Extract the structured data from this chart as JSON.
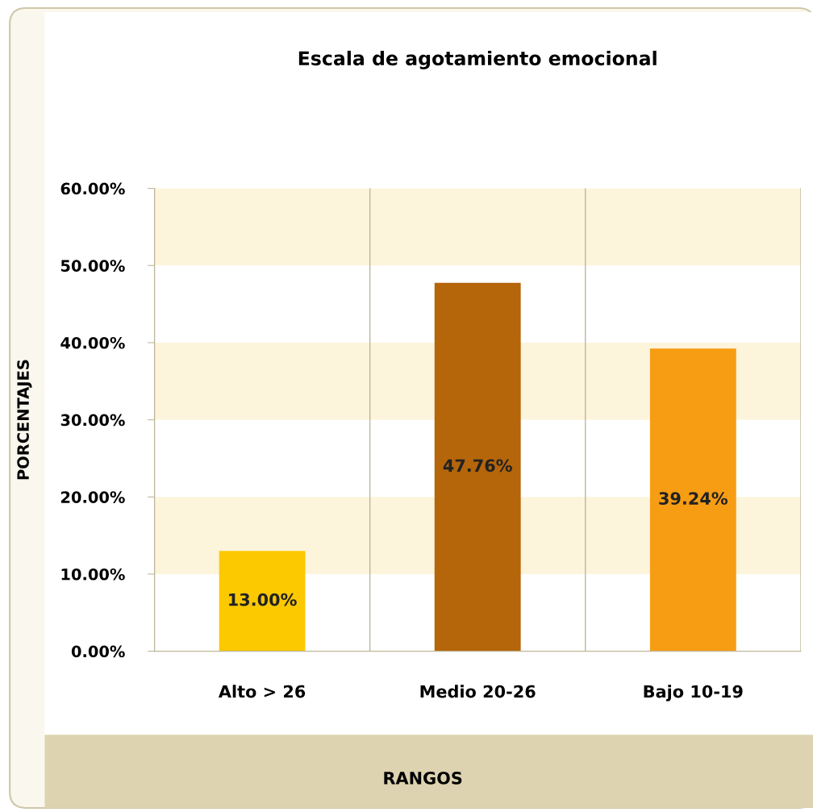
{
  "chart_data": {
    "type": "bar",
    "title": "Escala de agotamiento emocional",
    "xlabel": "RANGOS",
    "ylabel": "PORCENTAJES",
    "categories": [
      "Alto > 26",
      "Medio 20-26",
      "Bajo 10-19"
    ],
    "values": [
      13.0,
      47.76,
      39.24
    ],
    "colors": [
      "#fcc800",
      "#b5650a",
      "#f79d13"
    ],
    "value_labels": [
      "13.00%",
      "47.76%",
      "39.24%"
    ],
    "ylim": [
      0,
      60
    ],
    "yticks": [
      {
        "value": 0,
        "label": "0.00%"
      },
      {
        "value": 10,
        "label": "10.00%"
      },
      {
        "value": 20,
        "label": "20.00%"
      },
      {
        "value": 30,
        "label": "30.00%"
      },
      {
        "value": 40,
        "label": "40.00%"
      },
      {
        "value": 50,
        "label": "50.00%"
      },
      {
        "value": 60,
        "label": "60.00%"
      }
    ],
    "bands": [
      {
        "axis": "y",
        "from": 10,
        "to": 20,
        "color": "#fdf4dc"
      },
      {
        "axis": "y",
        "from": 30,
        "to": 40,
        "color": "#fdf4dc"
      },
      {
        "axis": "y",
        "from": 50,
        "to": 60,
        "color": "#fdf4dc"
      }
    ],
    "grid": "x",
    "legend": false
  }
}
